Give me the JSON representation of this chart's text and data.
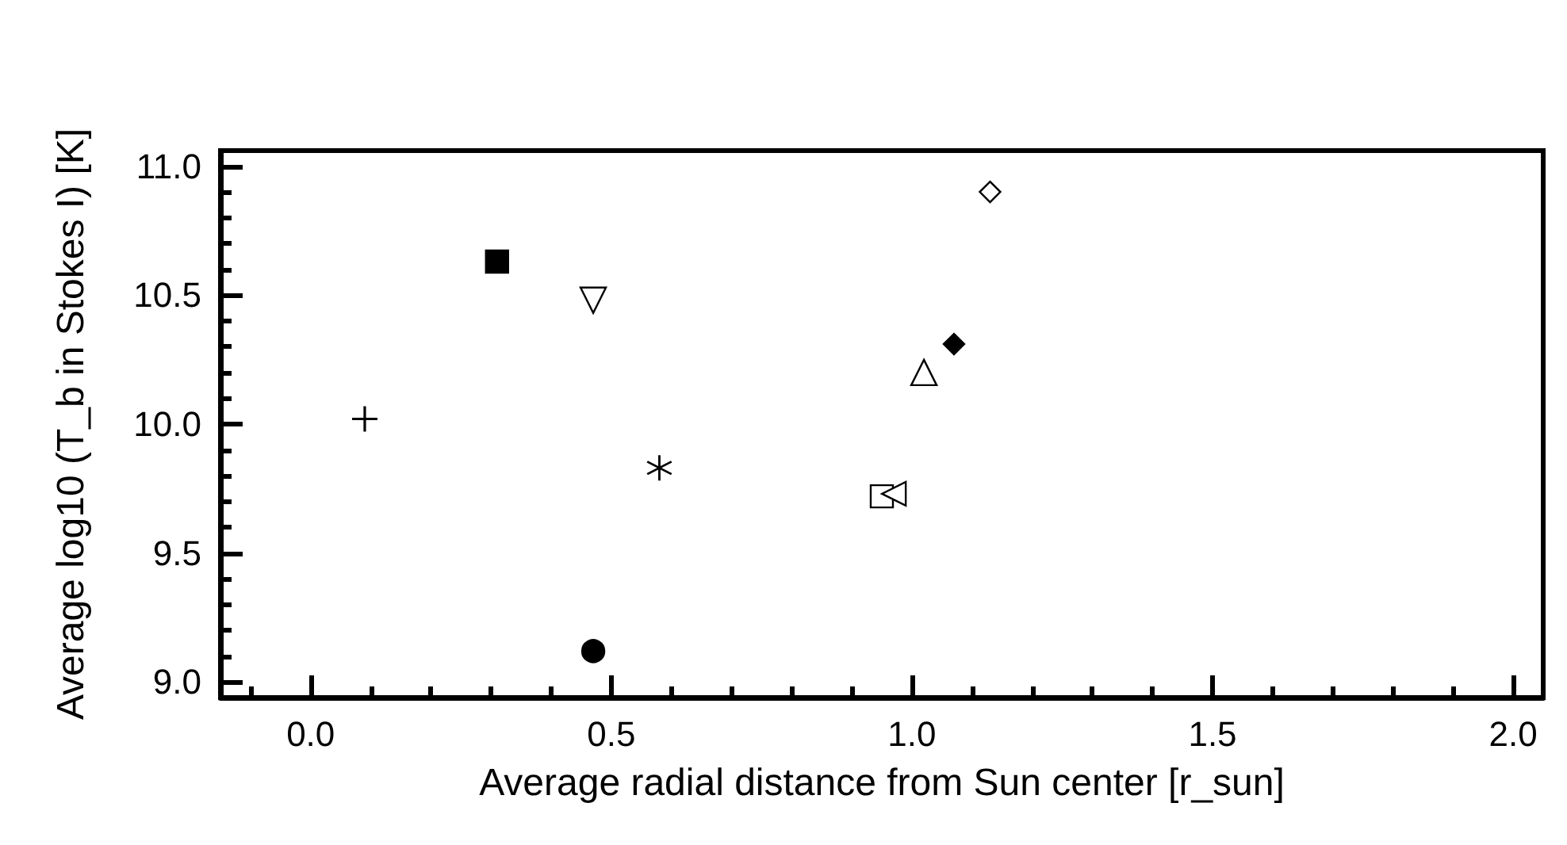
{
  "chart_data": {
    "type": "scatter",
    "xlabel": "Average radial distance from Sun center [r_sun]",
    "ylabel": "Average log10 (T_b in Stokes I) [K]",
    "xlim": [
      -0.15,
      2.05
    ],
    "xticks": [
      {
        "value": 0,
        "label": "0.0"
      },
      0.5,
      {
        "value": 1,
        "label": "1.0"
      },
      1.5,
      {
        "value": 2,
        "label": "2.0"
      }
    ],
    "ylim": [
      8.94,
      11.06
    ],
    "yticks": [
      {
        "value": 9,
        "label": "9.0"
      },
      9.5,
      {
        "value": 10,
        "label": "10.0"
      },
      10.5,
      {
        "value": 11,
        "label": "11.0"
      }
    ],
    "grid": false,
    "series": [
      {
        "x": [
          0.09
        ],
        "values": [
          10.02
        ],
        "marker": "cross",
        "color": "#000000"
      },
      {
        "x": [
          0.31
        ],
        "values": [
          10.63
        ],
        "marker": "square",
        "color": "#000000"
      },
      {
        "x": [
          0.47
        ],
        "values": [
          10.48
        ],
        "marker": "triangle-down",
        "color": "#ffffff"
      },
      {
        "x": [
          0.58
        ],
        "values": [
          9.83
        ],
        "marker": "star",
        "color": "#000000"
      },
      {
        "x": [
          0.47
        ],
        "values": [
          9.12
        ],
        "marker": "circle",
        "color": "#000000"
      },
      {
        "x": [
          0.95
        ],
        "values": [
          9.72
        ],
        "marker": "square",
        "color": "#ffffff"
      },
      {
        "x": [
          0.97
        ],
        "values": [
          9.73
        ],
        "marker": "triangle-left",
        "color": "#ffffff"
      },
      {
        "x": [
          1.02
        ],
        "values": [
          10.2
        ],
        "marker": "triangle",
        "color": "#ffffff"
      },
      {
        "x": [
          1.07
        ],
        "values": [
          10.31
        ],
        "marker": "diamond",
        "color": "#000000"
      },
      {
        "x": [
          1.13
        ],
        "values": [
          10.9
        ],
        "marker": "diamond",
        "color": "#ffffff"
      }
    ]
  }
}
